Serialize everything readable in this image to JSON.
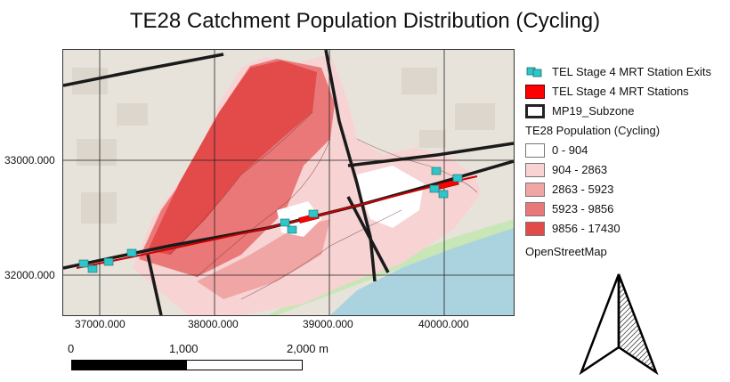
{
  "title": "TE28 Catchment Population Distribution (Cycling)",
  "axes": {
    "y_ticks": [
      "33000.000",
      "32000.000"
    ],
    "x_ticks": [
      "37000.000",
      "38000.000",
      "39000.000",
      "40000.000"
    ]
  },
  "legend": {
    "items": [
      {
        "label": "TEL Stage 4 MRT Station Exits",
        "icon": "station-exit-icon",
        "color": "#2ec6c9"
      },
      {
        "label": "TEL Stage 4 MRT Stations",
        "color": "#ff0000"
      },
      {
        "label": "MP19_Subzone",
        "color": "#222222"
      }
    ],
    "population_heading": "TE28 Population (Cycling)",
    "classes": [
      {
        "label": "0 - 904",
        "color": "#ffffff"
      },
      {
        "label": "904 - 2863",
        "color": "#f7d3d3"
      },
      {
        "label": "2863 - 5923",
        "color": "#f1a6a6"
      },
      {
        "label": "5923 - 9856",
        "color": "#ea7878"
      },
      {
        "label": "9856 - 17430",
        "color": "#e34a4a"
      }
    ],
    "basemap": "OpenStreetMap"
  },
  "scalebar": {
    "labels": [
      "0",
      "1,000",
      "2,000 m"
    ]
  },
  "north_arrow": {
    "icon": "north-arrow-icon"
  }
}
